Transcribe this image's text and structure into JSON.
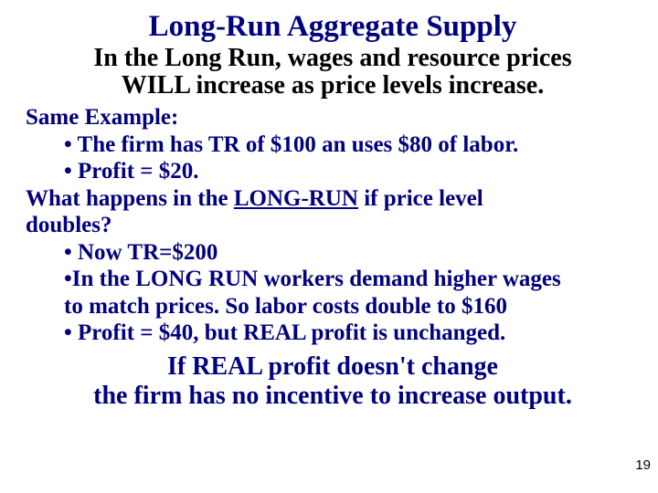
{
  "colors": {
    "title": "#000080",
    "subtitle": "#000000",
    "body": "#000080",
    "background": "#ffffff"
  },
  "fonts": {
    "family": "Times New Roman",
    "title_size_pt": 33,
    "subtitle_size_pt": 28,
    "body_size_pt": 25,
    "conclusion_size_pt": 28,
    "weight": "bold"
  },
  "title": "Long-Run Aggregate Supply",
  "subtitle_line1": "In the Long Run, wages and resource prices",
  "subtitle_line2": "WILL increase as price levels increase.",
  "body_lines": {
    "l0": "Same Example:",
    "l1": "• The firm has TR of $100 an uses $80 of labor.",
    "l2": "• Profit = $20.",
    "l3a": "What happens in the ",
    "l3b": "LONG-RUN",
    "l3c": " if price level",
    "l4": "doubles?",
    "l5": "• Now TR=$200",
    "l6": "•In the LONG RUN workers demand higher wages",
    "l7": "to match prices. So labor costs double to $160",
    "l8": "• Profit = $40, but REAL profit is unchanged."
  },
  "conclusion_line1": "If REAL profit doesn't change",
  "conclusion_line2": "the firm has no incentive to increase output.",
  "page_number": "19"
}
